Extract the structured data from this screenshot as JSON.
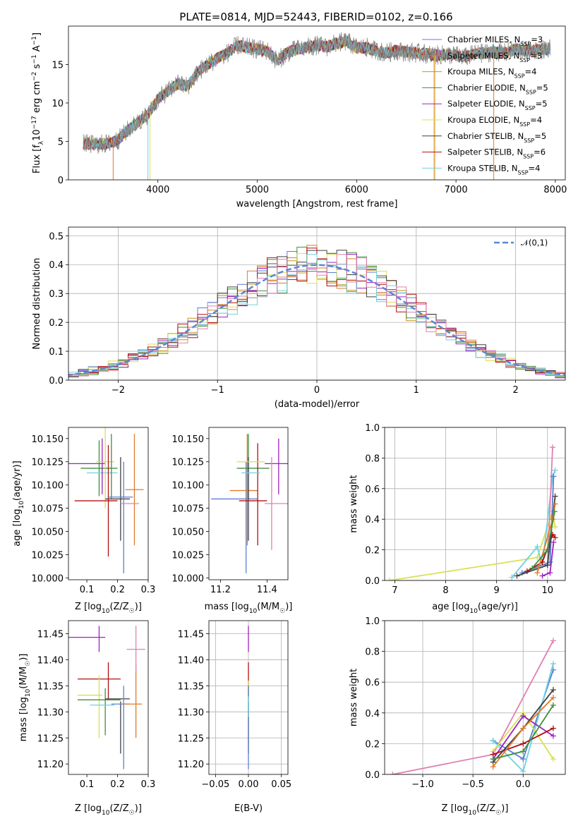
{
  "title": "PLATE=0814, MJD=52443, FIBERID=0102, z=0.166",
  "colors": [
    "#5b7fd4",
    "#e07a2a",
    "#c8941e",
    "#3e8f3e",
    "#a020c0",
    "#d8e050",
    "#404040",
    "#b01010",
    "#70d0e0",
    "#e080b0",
    "#8a8a8a"
  ],
  "chart_data": [
    {
      "id": "spectrum",
      "type": "line",
      "xlabel": "wavelength [Angstrom, rest frame]",
      "ylabel": "Flux [f_λ10^-17 erg cm^-2 s^-1 A^-1]",
      "xlim": [
        3100,
        8100
      ],
      "ylim": [
        0,
        20
      ],
      "xticks": [
        4000,
        5000,
        6000,
        7000,
        8000
      ],
      "yticks": [
        0,
        5,
        10,
        15
      ],
      "legend_position": "right",
      "legend": [
        {
          "label": "Chabrier MILES, N",
          "sub": "SSP",
          "val": "=3",
          "color": "#5b7fd4"
        },
        {
          "label": "Salpeter MILES, N",
          "sub": "SSP",
          "val": "=3",
          "color": "#e07a2a"
        },
        {
          "label": "Kroupa MILES, N",
          "sub": "SSP",
          "val": "=4",
          "color": "#c8941e"
        },
        {
          "label": "Chabrier ELODIE, N",
          "sub": "SSP",
          "val": "=5",
          "color": "#3e8f3e"
        },
        {
          "label": "Salpeter ELODIE, N",
          "sub": "SSP",
          "val": "=5",
          "color": "#a020c0"
        },
        {
          "label": "Kroupa ELODIE, N",
          "sub": "SSP",
          "val": "=4",
          "color": "#d8e050"
        },
        {
          "label": "Chabrier STELIB, N",
          "sub": "SSP",
          "val": "=5",
          "color": "#404040"
        },
        {
          "label": "Salpeter STELIB, N",
          "sub": "SSP",
          "val": "=6",
          "color": "#b01010"
        },
        {
          "label": "Kroupa STELIB, N",
          "sub": "SSP",
          "val": "=4",
          "color": "#70d0e0"
        }
      ],
      "envelope": [
        [
          3200,
          4.8
        ],
        [
          3350,
          4.6
        ],
        [
          3500,
          4.7
        ],
        [
          3600,
          5.2
        ],
        [
          3700,
          6.5
        ],
        [
          3800,
          7.5
        ],
        [
          3900,
          8.5
        ],
        [
          4000,
          10.5
        ],
        [
          4100,
          11.5
        ],
        [
          4200,
          12.5
        ],
        [
          4300,
          12.2
        ],
        [
          4400,
          14.0
        ],
        [
          4500,
          15.0
        ],
        [
          4600,
          15.8
        ],
        [
          4700,
          16.5
        ],
        [
          4800,
          17.5
        ],
        [
          4900,
          17.2
        ],
        [
          5000,
          17.0
        ],
        [
          5100,
          16.8
        ],
        [
          5200,
          15.5
        ],
        [
          5300,
          16.5
        ],
        [
          5400,
          17.0
        ],
        [
          5500,
          17.2
        ],
        [
          5600,
          17.5
        ],
        [
          5700,
          17.3
        ],
        [
          5800,
          17.8
        ],
        [
          5900,
          18.0
        ],
        [
          6000,
          17.2
        ],
        [
          6100,
          17.2
        ],
        [
          6200,
          16.8
        ],
        [
          6300,
          16.5
        ],
        [
          6400,
          16.8
        ],
        [
          6500,
          16.6
        ],
        [
          6600,
          16.5
        ],
        [
          6700,
          16.4
        ],
        [
          6800,
          16.2
        ],
        [
          6900,
          16.3
        ],
        [
          7000,
          16.2
        ],
        [
          7100,
          16.0
        ],
        [
          7200,
          16.4
        ],
        [
          7300,
          16.5
        ],
        [
          7400,
          16.7
        ],
        [
          7500,
          16.5
        ],
        [
          7600,
          17.0
        ],
        [
          7700,
          16.8
        ],
        [
          7800,
          16.9
        ],
        [
          7900,
          17.0
        ]
      ],
      "drops": [
        {
          "x": 3550,
          "color": "#e07a2a"
        },
        {
          "x": 3900,
          "color": "#70d0e0"
        },
        {
          "x": 3920,
          "color": "#d8e050"
        },
        {
          "x": 6780,
          "color": "#e07a2a"
        },
        {
          "x": 6790,
          "color": "#d8e050"
        },
        {
          "x": 7380,
          "color": "#e07a2a"
        }
      ]
    },
    {
      "id": "residuals",
      "type": "histogram",
      "xlabel": "(data-model)/error",
      "ylabel": "Normed distribution",
      "xlim": [
        -2.5,
        2.5
      ],
      "ylim": [
        0,
        0.53
      ],
      "xticks": [
        -2,
        -1,
        0,
        1,
        2
      ],
      "yticks": [
        0.0,
        0.1,
        0.2,
        0.3,
        0.4,
        0.5
      ],
      "grid": true,
      "legend_label": "𝒩(0,1)",
      "legend_position": "top-right",
      "bin_width": 0.1,
      "series_colors": [
        "#5b7fd4",
        "#e07a2a",
        "#c8941e",
        "#3e8f3e",
        "#a020c0",
        "#d8e050",
        "#404040",
        "#b01010",
        "#70d0e0",
        "#e080b0"
      ]
    },
    {
      "id": "age_vs_Z",
      "type": "errorbar",
      "xlabel": "Z [log10(Z/Z☉)]",
      "ylabel": "age [log10(age/yr)]",
      "xlim": [
        0.04,
        0.3
      ],
      "ylim": [
        9.998,
        10.162
      ],
      "xticks": [
        0.1,
        0.2,
        0.3
      ],
      "yticks": [
        10.0,
        10.025,
        10.05,
        10.075,
        10.1,
        10.125,
        10.15
      ],
      "points": [
        {
          "x": 0.1,
          "xe": 0.06,
          "y": 10.123,
          "ye": 0.0,
          "color": "#a020c0"
        },
        {
          "x": 0.14,
          "xe": 0.06,
          "y": 10.118,
          "ye": 0.03,
          "color": "#3e8f3e"
        },
        {
          "x": 0.15,
          "xe": 0.05,
          "y": 10.113,
          "ye": 0.015,
          "color": "#70d0e0"
        },
        {
          "x": 0.15,
          "xe": 0.0,
          "y": 10.12,
          "ye": 0.03,
          "color": "#a020c0"
        },
        {
          "x": 0.16,
          "xe": 0.03,
          "y": 10.125,
          "ye": 0.05,
          "color": "#d8e050"
        },
        {
          "x": 0.13,
          "xe": 0.07,
          "y": 10.083,
          "ye": 0.0,
          "color": "#b01010"
        },
        {
          "x": 0.17,
          "xe": 0.0,
          "y": 10.083,
          "ye": 0.06,
          "color": "#b01010"
        },
        {
          "x": 0.18,
          "xe": 0.0,
          "y": 10.12,
          "ye": 0.035,
          "color": "#3e8f3e"
        },
        {
          "x": 0.2,
          "xe": 0.04,
          "y": 10.085,
          "ye": 0.0,
          "color": "#404040"
        },
        {
          "x": 0.21,
          "xe": 0.0,
          "y": 10.085,
          "ye": 0.045,
          "color": "#404040"
        },
        {
          "x": 0.22,
          "xe": 0.0,
          "y": 10.065,
          "ye": 0.06,
          "color": "#5b7fd4"
        },
        {
          "x": 0.21,
          "xe": 0.04,
          "y": 10.087,
          "ye": 0.0,
          "color": "#5b7fd4"
        },
        {
          "x": 0.255,
          "xe": 0.03,
          "y": 10.095,
          "ye": 0.06,
          "color": "#e07a2a"
        },
        {
          "x": 0.24,
          "xe": 0.03,
          "y": 10.08,
          "ye": 0.0,
          "color": "#e080b0"
        }
      ]
    },
    {
      "id": "age_vs_mass",
      "type": "errorbar",
      "xlabel": "mass [log10(M/M☉)]",
      "ylabel": "",
      "xlim": [
        11.15,
        11.49
      ],
      "ylim": [
        9.998,
        10.162
      ],
      "xticks": [
        11.2,
        11.4
      ],
      "yticks": [
        10.0,
        10.025,
        10.05,
        10.075,
        10.1,
        10.125,
        10.15
      ],
      "points": [
        {
          "x": 11.26,
          "xe": 0.1,
          "y": 10.085,
          "ye": 0.0,
          "color": "#5b7fd4"
        },
        {
          "x": 11.31,
          "xe": 0.0,
          "y": 10.065,
          "ye": 0.06,
          "color": "#5b7fd4"
        },
        {
          "x": 11.315,
          "xe": 0.0,
          "y": 10.095,
          "ye": 0.06,
          "color": "#e07a2a"
        },
        {
          "x": 11.3,
          "xe": 0.06,
          "y": 10.094,
          "ye": 0.0,
          "color": "#e07a2a"
        },
        {
          "x": 11.32,
          "xe": 0.0,
          "y": 10.12,
          "ye": 0.035,
          "color": "#3e8f3e"
        },
        {
          "x": 11.34,
          "xe": 0.07,
          "y": 10.118,
          "ye": 0.0,
          "color": "#3e8f3e"
        },
        {
          "x": 11.32,
          "xe": 0.0,
          "y": 10.085,
          "ye": 0.045,
          "color": "#404040"
        },
        {
          "x": 11.34,
          "xe": 0.06,
          "y": 10.083,
          "ye": 0.0,
          "color": "#b01010"
        },
        {
          "x": 11.36,
          "xe": 0.0,
          "y": 10.09,
          "ye": 0.055,
          "color": "#b01010"
        },
        {
          "x": 11.33,
          "xe": 0.06,
          "y": 10.125,
          "ye": 0.0,
          "color": "#d8e050"
        },
        {
          "x": 11.33,
          "xe": 0.04,
          "y": 10.113,
          "ye": 0.0,
          "color": "#70d0e0"
        },
        {
          "x": 11.44,
          "xe": 0.05,
          "y": 10.123,
          "ye": 0.0,
          "color": "#a020c0"
        },
        {
          "x": 11.45,
          "xe": 0.0,
          "y": 10.12,
          "ye": 0.03,
          "color": "#a020c0"
        },
        {
          "x": 11.42,
          "xe": 0.0,
          "y": 10.08,
          "ye": 0.05,
          "color": "#e080b0"
        },
        {
          "x": 11.44,
          "xe": 0.05,
          "y": 10.08,
          "ye": 0.0,
          "color": "#e080b0"
        }
      ]
    },
    {
      "id": "mw_vs_age",
      "type": "line",
      "xlabel": "age [log10(age/yr)]",
      "ylabel": "mass weight",
      "xlim": [
        6.8,
        10.35
      ],
      "ylim": [
        0,
        1.0
      ],
      "xticks": [
        7,
        8,
        9,
        10
      ],
      "yticks": [
        0.0,
        0.2,
        0.4,
        0.6,
        0.8,
        1.0
      ],
      "grid": true,
      "series": [
        {
          "color": "#d8e050",
          "x": [
            6.9,
            9.8,
            10.1,
            10.15
          ],
          "y": [
            0.0,
            0.15,
            0.45,
            0.35
          ]
        },
        {
          "color": "#70d0e0",
          "x": [
            9.3,
            9.8,
            9.9,
            10.1,
            10.15
          ],
          "y": [
            0.02,
            0.22,
            0.1,
            0.68,
            0.72
          ]
        },
        {
          "color": "#e080b0",
          "x": [
            10.0,
            10.1
          ],
          "y": [
            0.1,
            0.87
          ]
        },
        {
          "color": "#5b7fd4",
          "x": [
            9.5,
            10.05,
            10.12
          ],
          "y": [
            0.05,
            0.12,
            0.68
          ]
        },
        {
          "color": "#b01010",
          "x": [
            9.6,
            9.9,
            10.1,
            10.15
          ],
          "y": [
            0.06,
            0.12,
            0.3,
            0.28
          ]
        },
        {
          "color": "#404040",
          "x": [
            9.4,
            10.0,
            10.15
          ],
          "y": [
            0.03,
            0.1,
            0.55
          ]
        },
        {
          "color": "#a020c0",
          "x": [
            9.9,
            10.05,
            10.12
          ],
          "y": [
            0.03,
            0.05,
            0.25
          ]
        },
        {
          "color": "#e07a2a",
          "x": [
            9.8,
            10.1,
            10.15
          ],
          "y": [
            0.05,
            0.4,
            0.5
          ]
        },
        {
          "color": "#3e8f3e",
          "x": [
            9.7,
            10.0,
            10.14
          ],
          "y": [
            0.08,
            0.2,
            0.45
          ]
        }
      ]
    },
    {
      "id": "mass_vs_Z",
      "type": "errorbar",
      "xlabel": "Z [log10(Z/Z☉)]",
      "ylabel": "mass [log10(M/M☉)]",
      "xlim": [
        0.04,
        0.3
      ],
      "ylim": [
        11.18,
        11.475
      ],
      "xticks": [
        0.1,
        0.2,
        0.3
      ],
      "yticks": [
        11.2,
        11.25,
        11.3,
        11.35,
        11.4,
        11.45
      ],
      "points": [
        {
          "x": 0.1,
          "xe": 0.06,
          "y": 11.443,
          "ye": 0.0,
          "color": "#a020c0"
        },
        {
          "x": 0.14,
          "xe": 0.0,
          "y": 11.44,
          "ye": 0.025,
          "color": "#a020c0"
        },
        {
          "x": 0.14,
          "xe": 0.07,
          "y": 11.363,
          "ye": 0.0,
          "color": "#b01010"
        },
        {
          "x": 0.17,
          "xe": 0.0,
          "y": 11.36,
          "ye": 0.035,
          "color": "#b01010"
        },
        {
          "x": 0.11,
          "xe": 0.04,
          "y": 11.332,
          "ye": 0.0,
          "color": "#d8e050"
        },
        {
          "x": 0.14,
          "xe": 0.0,
          "y": 11.31,
          "ye": 0.06,
          "color": "#d8e050"
        },
        {
          "x": 0.14,
          "xe": 0.07,
          "y": 11.323,
          "ye": 0.0,
          "color": "#3e8f3e"
        },
        {
          "x": 0.16,
          "xe": 0.0,
          "y": 11.3,
          "ye": 0.045,
          "color": "#3e8f3e"
        },
        {
          "x": 0.15,
          "xe": 0.04,
          "y": 11.313,
          "ye": 0.0,
          "color": "#70d0e0"
        },
        {
          "x": 0.2,
          "xe": 0.04,
          "y": 11.325,
          "ye": 0.0,
          "color": "#404040"
        },
        {
          "x": 0.21,
          "xe": 0.0,
          "y": 11.27,
          "ye": 0.05,
          "color": "#404040"
        },
        {
          "x": 0.22,
          "xe": 0.0,
          "y": 11.27,
          "ye": 0.08,
          "color": "#5b7fd4"
        },
        {
          "x": 0.21,
          "xe": 0.03,
          "y": 11.315,
          "ye": 0.0,
          "color": "#5b7fd4"
        },
        {
          "x": 0.25,
          "xe": 0.03,
          "y": 11.315,
          "ye": 0.0,
          "color": "#e07a2a"
        },
        {
          "x": 0.26,
          "xe": 0.0,
          "y": 11.32,
          "ye": 0.07,
          "color": "#e07a2a"
        },
        {
          "x": 0.26,
          "xe": 0.03,
          "y": 11.42,
          "ye": 0.0,
          "color": "#e080b0"
        },
        {
          "x": 0.26,
          "xe": 0.0,
          "y": 11.42,
          "ye": 0.045,
          "color": "#e080b0"
        }
      ]
    },
    {
      "id": "mass_vs_ebv",
      "type": "errorbar",
      "xlabel": "E(B-V)",
      "ylabel": "",
      "xlim": [
        -0.06,
        0.06
      ],
      "ylim": [
        11.18,
        11.475
      ],
      "xticks": [
        -0.05,
        0.0,
        0.05
      ],
      "yticks": [
        11.2,
        11.25,
        11.3,
        11.35,
        11.4,
        11.45
      ],
      "grid": true,
      "points": [
        {
          "x": 0.0,
          "xe": 0.0,
          "y": 11.44,
          "ye": 0.025,
          "color": "#a020c0"
        },
        {
          "x": 0.0,
          "xe": 0.0,
          "y": 11.36,
          "ye": 0.035,
          "color": "#b01010"
        },
        {
          "x": 0.0,
          "xe": 0.0,
          "y": 11.3,
          "ye": 0.06,
          "color": "#d8e050"
        },
        {
          "x": 0.0,
          "xe": 0.0,
          "y": 11.27,
          "ye": 0.05,
          "color": "#404040"
        },
        {
          "x": 0.0,
          "xe": 0.0,
          "y": 11.27,
          "ye": 0.08,
          "color": "#5b7fd4"
        },
        {
          "x": 0.0,
          "xe": 0.0,
          "y": 11.31,
          "ye": 0.02,
          "color": "#70d0e0"
        }
      ]
    },
    {
      "id": "mw_vs_Z",
      "type": "line",
      "xlabel": "Z [log10(Z/Z☉)]",
      "ylabel": "mass weight",
      "xlim": [
        -1.38,
        0.42
      ],
      "ylim": [
        0,
        1.0
      ],
      "xticks": [
        -1.0,
        -0.5,
        0.0
      ],
      "yticks": [
        0.0,
        0.2,
        0.4,
        0.6,
        0.8,
        1.0
      ],
      "grid": true,
      "series": [
        {
          "color": "#e080b0",
          "x": [
            -1.3,
            -0.3,
            0.3
          ],
          "y": [
            0.0,
            0.13,
            0.87
          ]
        },
        {
          "color": "#5b7fd4",
          "x": [
            -0.3,
            0.0,
            0.3
          ],
          "y": [
            0.22,
            0.1,
            0.68
          ]
        },
        {
          "color": "#70d0e0",
          "x": [
            -0.3,
            0.0,
            0.3
          ],
          "y": [
            0.22,
            0.02,
            0.72
          ]
        },
        {
          "color": "#d8e050",
          "x": [
            -0.3,
            0.0,
            0.3
          ],
          "y": [
            0.15,
            0.4,
            0.1
          ]
        },
        {
          "color": "#a020c0",
          "x": [
            -0.3,
            0.0,
            0.3
          ],
          "y": [
            0.1,
            0.38,
            0.25
          ]
        },
        {
          "color": "#b01010",
          "x": [
            -0.3,
            0.0,
            0.3
          ],
          "y": [
            0.13,
            0.2,
            0.3
          ]
        },
        {
          "color": "#404040",
          "x": [
            -0.3,
            0.0,
            0.3
          ],
          "y": [
            0.08,
            0.3,
            0.55
          ]
        },
        {
          "color": "#e07a2a",
          "x": [
            -0.3,
            0.0,
            0.3
          ],
          "y": [
            0.05,
            0.3,
            0.5
          ]
        },
        {
          "color": "#3e8f3e",
          "x": [
            -0.3,
            0.0,
            0.3
          ],
          "y": [
            0.1,
            0.15,
            0.45
          ]
        }
      ]
    }
  ]
}
